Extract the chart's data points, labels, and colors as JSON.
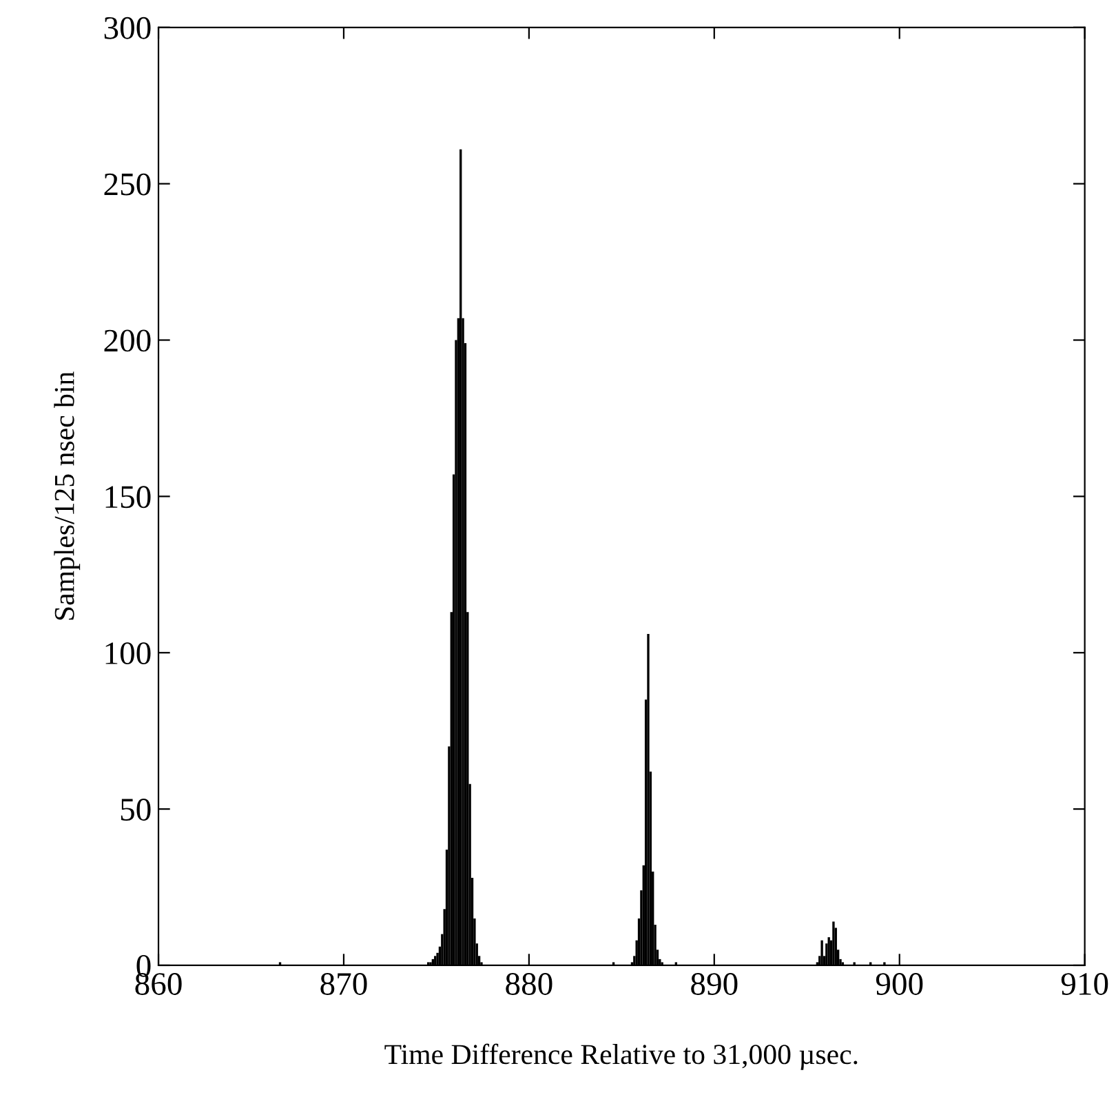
{
  "chart_data": {
    "type": "histogram",
    "xlabel": "Time Difference Relative to 31,000 µsec.",
    "ylabel": "Samples/125 nsec bin",
    "bins": [
      866.5,
      866.625,
      874.5,
      874.625,
      874.75,
      874.875,
      875,
      875.125,
      875.25,
      875.375,
      875.5,
      875.625,
      875.75,
      875.875,
      876,
      876.125,
      876.25,
      876.375,
      876.5,
      876.625,
      876.75,
      876.875,
      877,
      877.125,
      877.25,
      877.375,
      877.5,
      884.5,
      884.625,
      885.5,
      885.625,
      885.75,
      885.875,
      886,
      886.125,
      886.25,
      886.375,
      886.5,
      886.625,
      886.75,
      886.875,
      887,
      887.125,
      887.25,
      887.875,
      888,
      895.5,
      895.625,
      895.75,
      895.875,
      896,
      896.125,
      896.25,
      896.375,
      896.5,
      896.625,
      896.75,
      896.875,
      897,
      897.5,
      897.625,
      898.375,
      898.5,
      899.125,
      899.25
    ],
    "values": [
      1,
      0,
      1,
      1,
      2,
      3,
      4,
      6,
      10,
      18,
      37,
      70,
      113,
      157,
      200,
      207,
      261,
      207,
      199,
      113,
      58,
      28,
      15,
      7,
      3,
      1,
      0,
      1,
      0,
      1,
      3,
      8,
      15,
      24,
      32,
      85,
      106,
      62,
      30,
      13,
      5,
      2,
      1,
      0,
      1,
      0,
      1,
      3,
      8,
      3,
      7,
      9,
      8,
      14,
      12,
      5,
      2,
      1,
      0,
      1,
      0,
      1,
      0,
      1
    ],
    "color": "#000000",
    "xlim": [
      860,
      910
    ],
    "xticks": [
      860,
      870,
      880,
      890,
      900,
      910
    ],
    "ylim": [
      0,
      300
    ],
    "yticks": [
      0,
      50,
      100,
      150,
      200,
      250,
      300
    ],
    "grid": false
  }
}
